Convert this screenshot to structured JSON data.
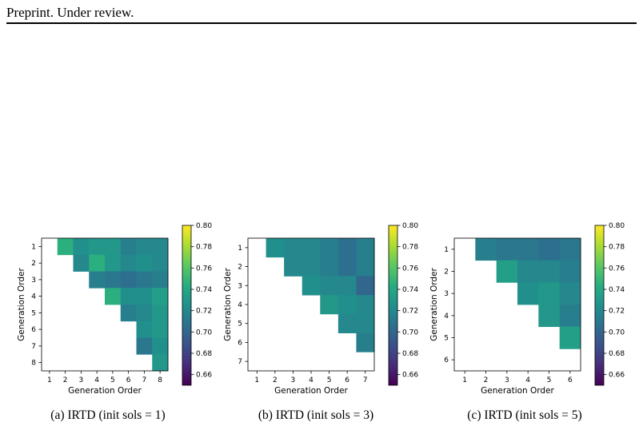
{
  "header": {
    "text": "Preprint. Under review."
  },
  "colorbar": {
    "min": 0.65,
    "max": 0.8,
    "ticks": [
      "0.80",
      "0.78",
      "0.76",
      "0.74",
      "0.72",
      "0.70",
      "0.68",
      "0.66"
    ],
    "colormap": "viridis"
  },
  "chart_data": [
    {
      "type": "heatmap",
      "title": "",
      "caption": "(a) IRTD (init sols = 1)",
      "xlabel": "Generation Order",
      "ylabel": "Generation Order",
      "x_categories": [
        "1",
        "2",
        "3",
        "4",
        "5",
        "6",
        "7",
        "8"
      ],
      "y_categories": [
        "1",
        "2",
        "3",
        "4",
        "5",
        "6",
        "7",
        "8"
      ],
      "colorbar_range": [
        0.65,
        0.8
      ],
      "matrix": [
        [
          null,
          0.745,
          0.725,
          0.73,
          0.73,
          0.715,
          0.72,
          0.72
        ],
        [
          null,
          null,
          0.72,
          0.745,
          0.73,
          0.72,
          0.725,
          0.72
        ],
        [
          null,
          null,
          null,
          0.715,
          0.71,
          0.705,
          0.71,
          0.715
        ],
        [
          null,
          null,
          null,
          null,
          0.745,
          0.725,
          0.725,
          0.735
        ],
        [
          null,
          null,
          null,
          null,
          null,
          0.715,
          0.72,
          0.73
        ],
        [
          null,
          null,
          null,
          null,
          null,
          null,
          0.725,
          0.73
        ],
        [
          null,
          null,
          null,
          null,
          null,
          null,
          0.71,
          0.725
        ],
        [
          null,
          null,
          null,
          null,
          null,
          null,
          null,
          0.73
        ]
      ]
    },
    {
      "type": "heatmap",
      "title": "",
      "caption": "(b) IRTD (init sols = 3)",
      "xlabel": "Generation Order",
      "ylabel": "Generation Order",
      "x_categories": [
        "1",
        "2",
        "3",
        "4",
        "5",
        "6",
        "7"
      ],
      "y_categories": [
        "1",
        "2",
        "3",
        "4",
        "5",
        "6",
        "7"
      ],
      "colorbar_range": [
        0.65,
        0.8
      ],
      "matrix": [
        [
          null,
          0.725,
          0.72,
          0.72,
          0.715,
          0.705,
          0.715
        ],
        [
          null,
          null,
          0.72,
          0.72,
          0.715,
          0.705,
          0.715
        ],
        [
          null,
          null,
          null,
          0.725,
          0.72,
          0.72,
          0.7
        ],
        [
          null,
          null,
          null,
          null,
          0.73,
          0.725,
          0.72
        ],
        [
          null,
          null,
          null,
          null,
          null,
          0.72,
          0.72
        ],
        [
          null,
          null,
          null,
          null,
          null,
          null,
          0.715
        ],
        [
          null,
          null,
          null,
          null,
          null,
          null,
          null
        ]
      ]
    },
    {
      "type": "heatmap",
      "title": "",
      "caption": "(c) IRTD (init sols = 5)",
      "xlabel": "Generation Order",
      "ylabel": "Generation Order",
      "x_categories": [
        "1",
        "2",
        "3",
        "4",
        "5",
        "6"
      ],
      "y_categories": [
        "1",
        "2",
        "3",
        "4",
        "5",
        "6"
      ],
      "colorbar_range": [
        0.65,
        0.8
      ],
      "matrix": [
        [
          null,
          0.715,
          0.71,
          0.71,
          0.705,
          0.71
        ],
        [
          null,
          null,
          0.735,
          0.72,
          0.72,
          0.715
        ],
        [
          null,
          null,
          null,
          0.725,
          0.73,
          0.72
        ],
        [
          null,
          null,
          null,
          null,
          0.73,
          0.715
        ],
        [
          null,
          null,
          null,
          null,
          null,
          0.735
        ],
        [
          null,
          null,
          null,
          null,
          null,
          null
        ]
      ]
    }
  ]
}
